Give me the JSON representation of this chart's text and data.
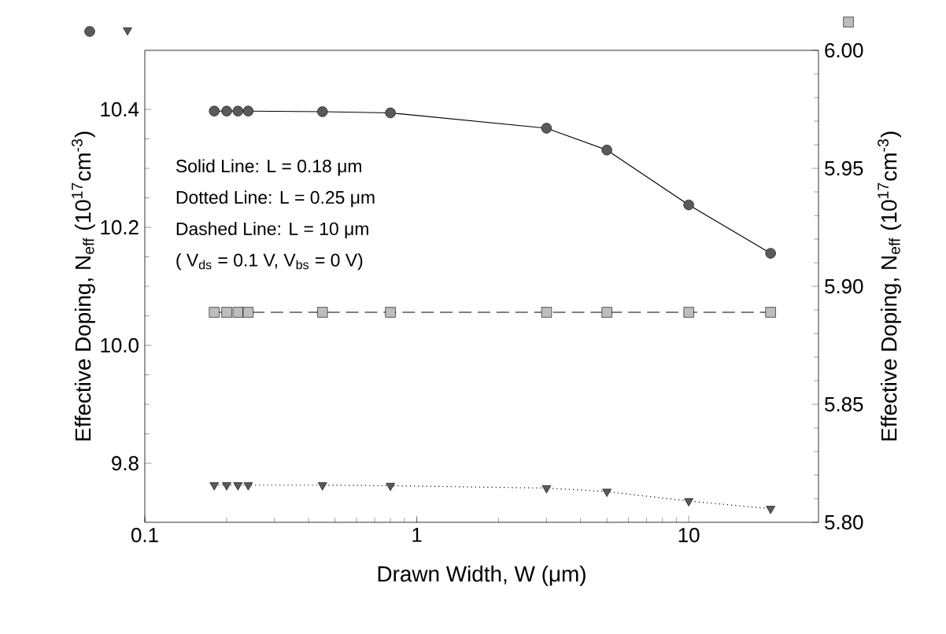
{
  "chart_data": {
    "type": "line",
    "xlabel": "Drawn Width, W (μm)",
    "ylabel": "Effective Doping, N$_{eff}$ (10$^{17}$cm$^{-3}$)",
    "y2label": "Effective Doping, N$_{eff}$ (10$^{17}$cm$^{-3}$)",
    "annotations": [
      "Solid Line: L = 0.18 μm",
      "Dotted Line: L = 0.25 μm",
      "Dashed Line: L = 10 μm",
      "( V$_{ds}$ = 0.1 V, V$_{bs}$ = 0 V)"
    ],
    "log": "x",
    "x": [
      0.18,
      0.2,
      0.22,
      0.24,
      0.45,
      0.8,
      3,
      5,
      10,
      20
    ],
    "xlim": [
      0.1,
      30
    ],
    "xticks": [
      0.1,
      1,
      10
    ],
    "ylim": [
      9.7,
      10.5
    ],
    "yticks": [
      {
        "value": 9.8,
        "label": "9.8"
      },
      {
        "value": 10,
        "label": "10.0"
      },
      {
        "value": 10.2,
        "label": "10.2"
      },
      {
        "value": 10.4,
        "label": "10.4"
      }
    ],
    "y2lim": [
      5.8,
      6.0
    ],
    "y2ticks": [
      {
        "value": 5.8,
        "label": "5.80"
      },
      {
        "value": 5.85,
        "label": "5.85"
      },
      {
        "value": 5.9,
        "label": "5.90"
      },
      {
        "value": 5.95,
        "label": "5.95"
      },
      {
        "value": 6.0,
        "label": "6.00"
      }
    ],
    "grid": false,
    "series": [
      {
        "color": "#5a5a5a",
        "marker": "circle",
        "line_style": "solid",
        "values": [
          10.397,
          10.397,
          10.397,
          10.397,
          10.396,
          10.394,
          10.368,
          10.331,
          10.238,
          10.156
        ]
      },
      {
        "color": "#5a5a5a",
        "marker": "triangle",
        "line_style": "dotted",
        "values": [
          9.763,
          9.763,
          9.763,
          9.763,
          9.763,
          9.762,
          9.758,
          9.752,
          9.736,
          9.723
        ]
      },
      {
        "color": "#bdbdbd",
        "marker": "square",
        "line_style": "dashed",
        "axis": "y2",
        "values": [
          5.889,
          5.889,
          5.889,
          5.889,
          5.889,
          5.889,
          5.889,
          5.889,
          5.889,
          5.889
        ]
      }
    ]
  }
}
